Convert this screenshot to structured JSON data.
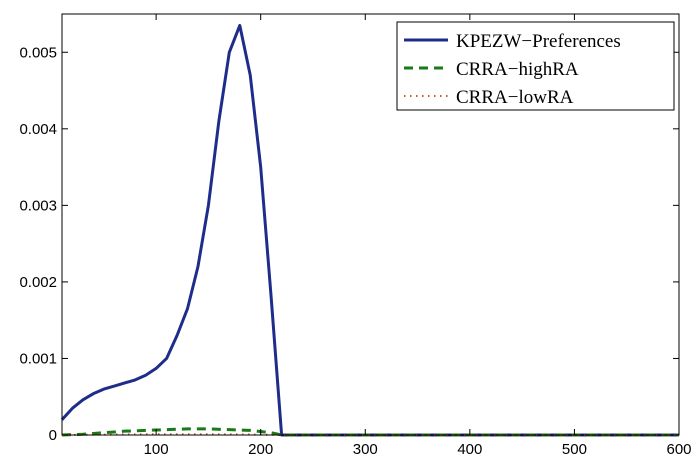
{
  "chart_data": {
    "type": "line",
    "title": "",
    "xlabel": "",
    "ylabel": "",
    "xlim": [
      10,
      600
    ],
    "ylim": [
      0,
      0.0055
    ],
    "xticks": [
      100,
      200,
      300,
      400,
      500,
      600
    ],
    "xtick_labels": [
      "100",
      "200",
      "300",
      "400",
      "500",
      "600"
    ],
    "yticks": [
      0,
      0.001,
      0.002,
      0.003,
      0.004,
      0.005
    ],
    "ytick_labels": [
      "0",
      "0.001",
      "0.002",
      "0.003",
      "0.004",
      "0.005"
    ],
    "grid": false,
    "legend_position": "top-right",
    "series": [
      {
        "name": "KPEZW−Preferences",
        "color": "#1f2d8a",
        "style": "solid",
        "x": [
          10,
          20,
          30,
          40,
          50,
          60,
          70,
          80,
          90,
          100,
          110,
          120,
          130,
          140,
          150,
          160,
          170,
          180,
          190,
          200,
          210,
          220,
          230,
          300,
          400,
          500,
          600
        ],
        "y": [
          0.0002,
          0.00035,
          0.00046,
          0.00054,
          0.0006,
          0.00064,
          0.00068,
          0.00072,
          0.00078,
          0.00087,
          0.001,
          0.0013,
          0.00165,
          0.0022,
          0.003,
          0.0041,
          0.005,
          0.00535,
          0.0047,
          0.0035,
          0.0018,
          0.0,
          0.0,
          0.0,
          0.0,
          0.0,
          0.0
        ]
      },
      {
        "name": "CRRA−highRA",
        "color": "#1a7a1a",
        "style": "dashed",
        "x": [
          10,
          30,
          50,
          70,
          90,
          110,
          130,
          150,
          170,
          190,
          210,
          220,
          300,
          400,
          500,
          600
        ],
        "y": [
          0.0,
          1e-05,
          3e-05,
          5e-05,
          6e-05,
          7e-05,
          8e-05,
          8e-05,
          7e-05,
          6e-05,
          3e-05,
          0.0,
          0.0,
          0.0,
          0.0,
          0.0
        ]
      },
      {
        "name": "CRRA−lowRA",
        "color": "#d2502a",
        "style": "dotted",
        "x": [
          10,
          50,
          100,
          150,
          200,
          220,
          300,
          400,
          500,
          600
        ],
        "y": [
          0.0,
          5e-06,
          1e-05,
          1e-05,
          5e-06,
          0.0,
          0.0,
          0.0,
          0.0,
          0.0
        ]
      }
    ]
  }
}
